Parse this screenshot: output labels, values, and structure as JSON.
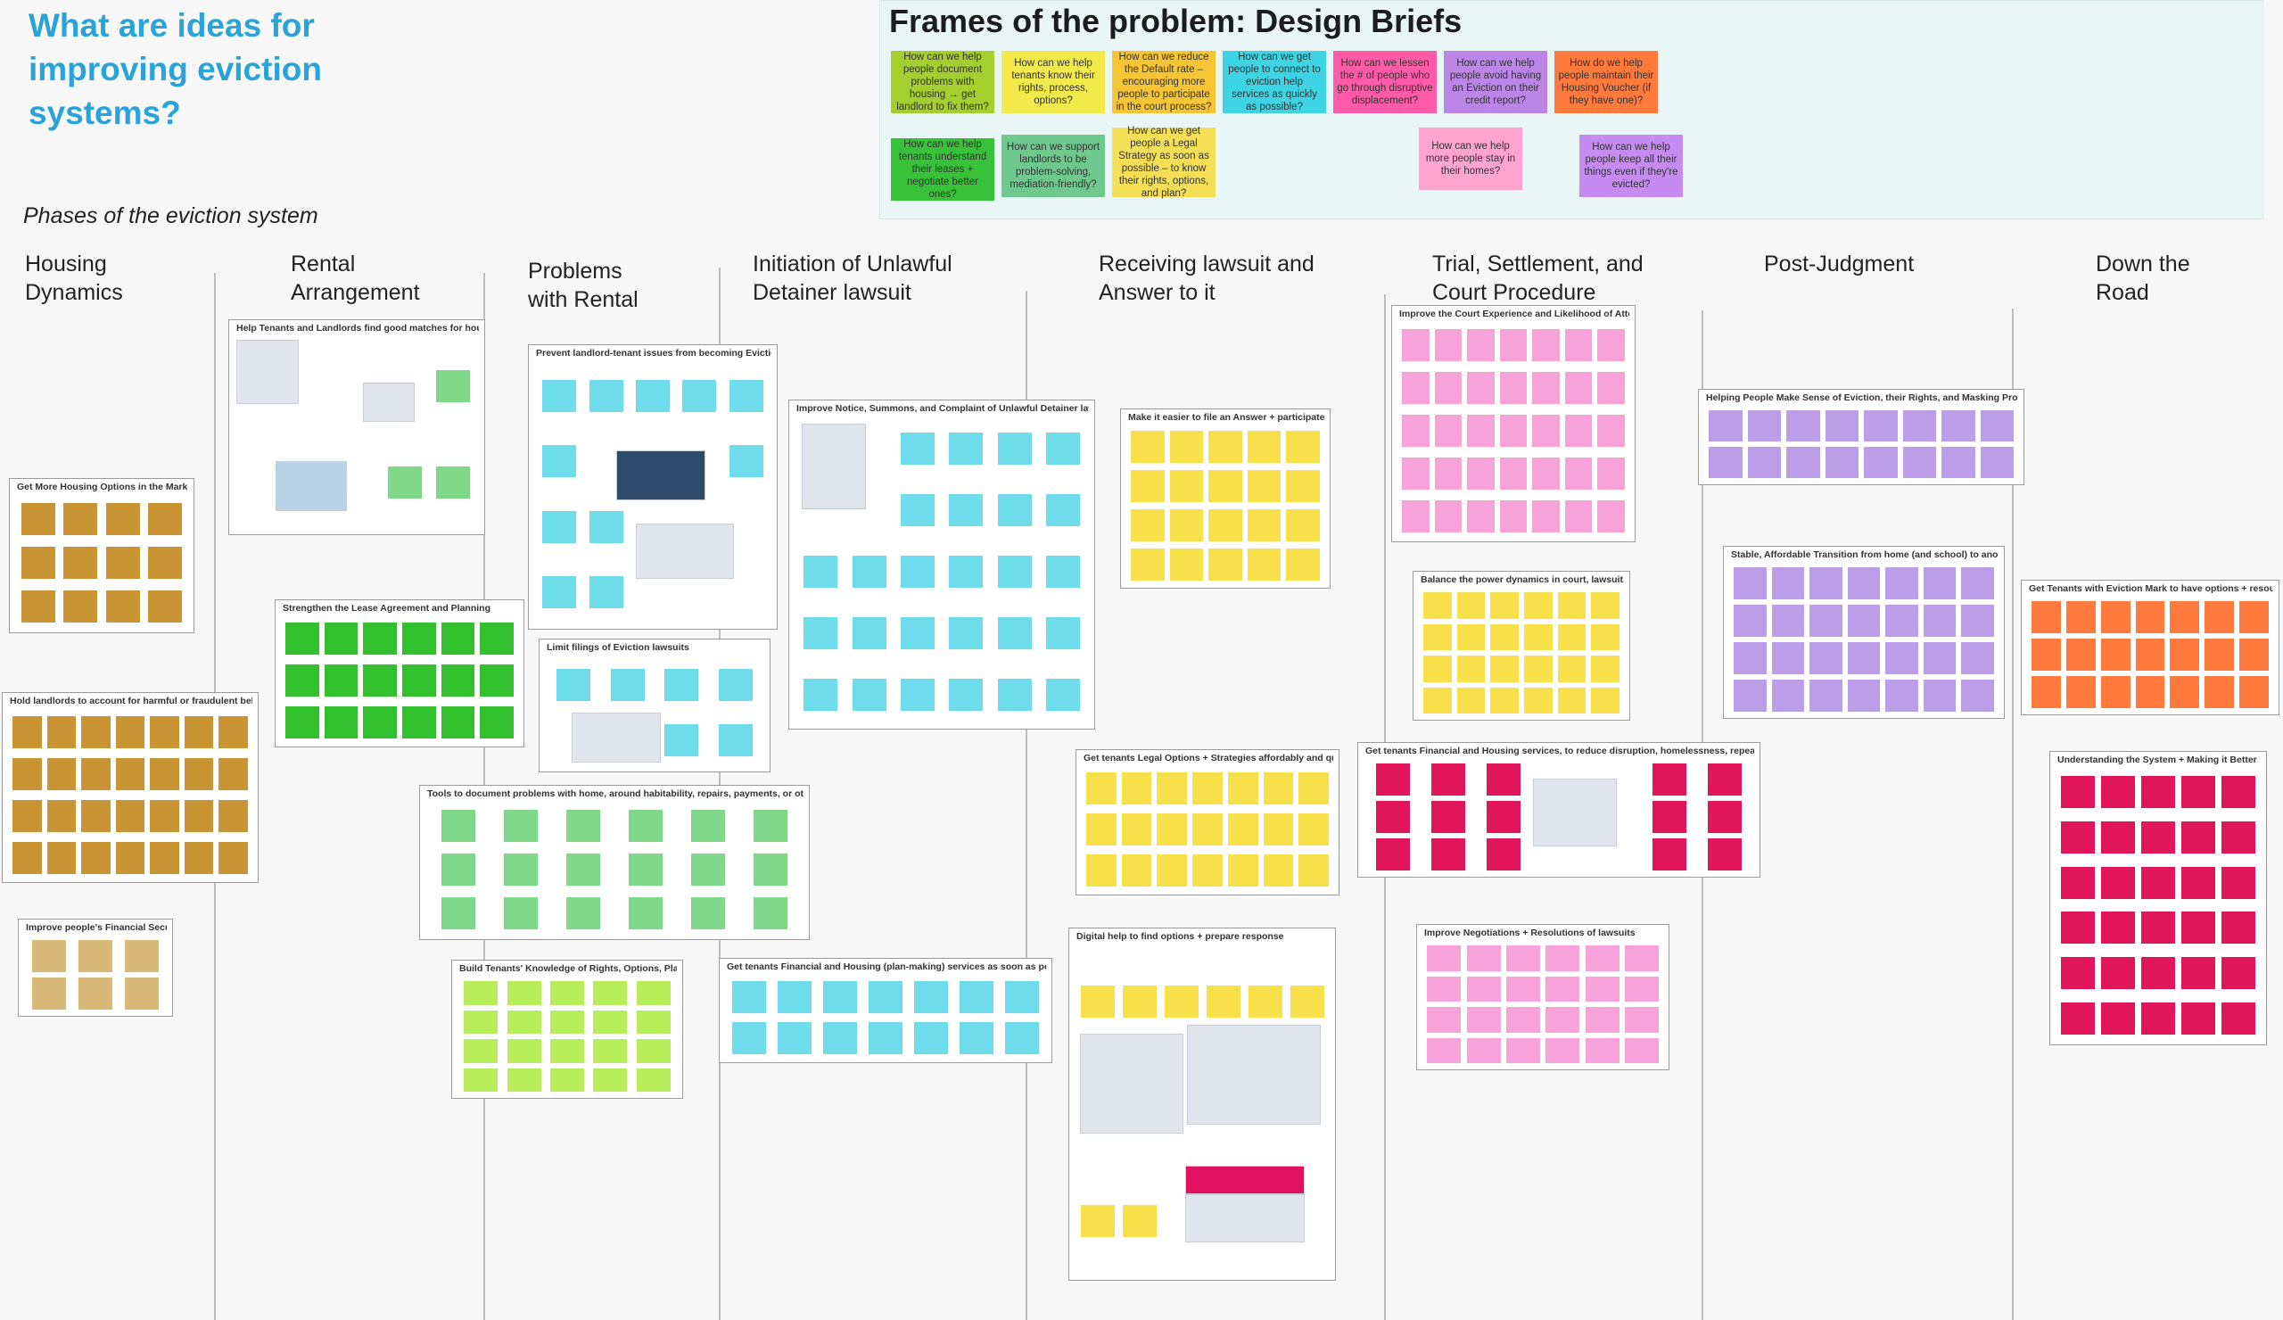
{
  "main_title": "What are ideas for improving eviction systems?",
  "frames": {
    "title": "Frames of the problem: Design Briefs",
    "briefs": [
      {
        "text": "How can we help people document problems with housing → get landlord to fix them?",
        "color": "#a3cf2f"
      },
      {
        "text": "How can we help tenants know their rights, process, options?",
        "color": "#f2ea4b"
      },
      {
        "text": "How can we reduce the Default rate – encouraging more people to participate in the court process?",
        "color": "#f6c534"
      },
      {
        "text": "How can we get people to connect to eviction help services as quickly as possible?",
        "color": "#3fd4e4"
      },
      {
        "text": "How can we lessen the # of people who go through disruptive displacement?",
        "color": "#ff5ba8"
      },
      {
        "text": "How can we help people avoid having an Eviction on their credit report?",
        "color": "#bb86e8"
      },
      {
        "text": "How do we help people maintain their Housing Voucher (if they have one)?",
        "color": "#ff7a3c"
      },
      {
        "text": "How can we help tenants understand their leases + negotiate better ones?",
        "color": "#38c23a"
      },
      {
        "text": "How can we support landlords to be problem-solving, mediation-friendly?",
        "color": "#6fc98e"
      },
      {
        "text": "How can we get people a Legal Strategy as soon as possible – to know their rights, options, and plan?",
        "color": "#f5df57"
      },
      {
        "text": "How can we help more people stay in their homes?",
        "color": "#ffa3cf"
      },
      {
        "text": "How can we help people keep all their things even if they're evicted?",
        "color": "#c58bf0"
      }
    ]
  },
  "phases_label": "Phases of the eviction system",
  "phases": [
    "Housing Dynamics",
    "Rental Arrangement",
    "Problems with Rental",
    "Initiation of Unlawful Detainer lawsuit",
    "Receiving lawsuit and Answer to it",
    "Trial, Settlement, and Court Procedure",
    "Post-Judgment",
    "Down the Road"
  ],
  "clusters": [
    "Get More Housing Options in the Market",
    "Hold landlords to account for harmful or fraudulent behavior",
    "Improve people's Financial Security",
    "Help Tenants and Landlords find good matches for housing",
    "Strengthen the Lease Agreement and Planning",
    "Prevent landlord-tenant issues from becoming Evictions",
    "Limit filings of Eviction lawsuits",
    "Tools to document problems with home, around habitability, repairs, payments, or otherwise",
    "Build Tenants' Knowledge of Rights, Options, Plans",
    "Improve Notice, Summons, and Complaint of Unlawful Detainer lawsuit",
    "Get tenants Financial and Housing (plan-making) services as soon as possible",
    "Make it easier to file an Answer + participate",
    "Get tenants Legal Options + Strategies affordably and quickly",
    "Digital help to find options + prepare response",
    "Improve the Court Experience and Likelihood of Attendance",
    "Balance the power dynamics in court, lawsuit, settlement",
    "Get tenants Financial and Housing services, to reduce disruption, homelessness, repeat eviction",
    "Improve Negotiations + Resolutions of lawsuits",
    "Helping People Make Sense of Eviction, their Rights, and Masking Protections",
    "Stable, Affordable Transition from home (and school) to another",
    "Get Tenants with Eviction Mark to have options + resources",
    "Understanding the System + Making it Better"
  ],
  "colors": {
    "title": "#2aa3d8",
    "frames_bg": "#e9f6f6",
    "brown": "#c99434",
    "tan": "#d8b978",
    "green": "#33c02e",
    "lightgreen": "#7fd88a",
    "lime": "#b9ec5a",
    "cyan": "#6fdcec",
    "yellow": "#f7e04a",
    "pink": "#f7a3d9",
    "orange": "#ff7a3c",
    "lavender": "#bb9de8",
    "crimson": "#e0155a"
  }
}
